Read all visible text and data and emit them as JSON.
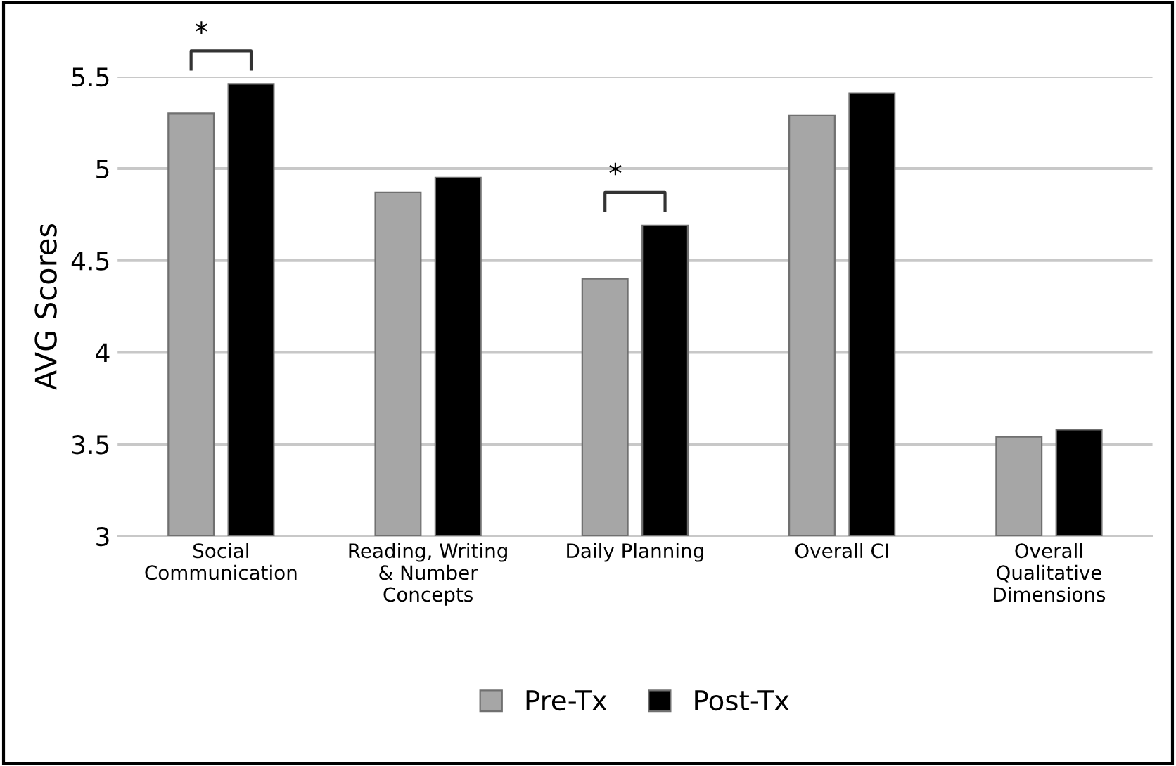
{
  "chart_data": {
    "type": "bar",
    "ylabel": "AVG Scores",
    "categories": [
      "Social\nCommunication",
      "Reading, Writing\n& Number\nConcepts",
      "Daily Planning",
      "Overall CI",
      "Overall\nQualitative\nDimensions"
    ],
    "series": [
      {
        "name": "Pre-Tx",
        "color": "#a6a6a6",
        "values": [
          5.3,
          4.87,
          4.4,
          5.29,
          3.54
        ]
      },
      {
        "name": "Post-Tx",
        "color": "#000000",
        "values": [
          5.46,
          4.95,
          4.69,
          5.41,
          3.58
        ]
      }
    ],
    "ylim": [
      3,
      5.5
    ],
    "yticks": [
      3,
      3.5,
      4,
      4.5,
      5,
      5.5
    ],
    "grid": "y",
    "legend": "bottom",
    "annotations": [
      "*",
      "*"
    ]
  }
}
